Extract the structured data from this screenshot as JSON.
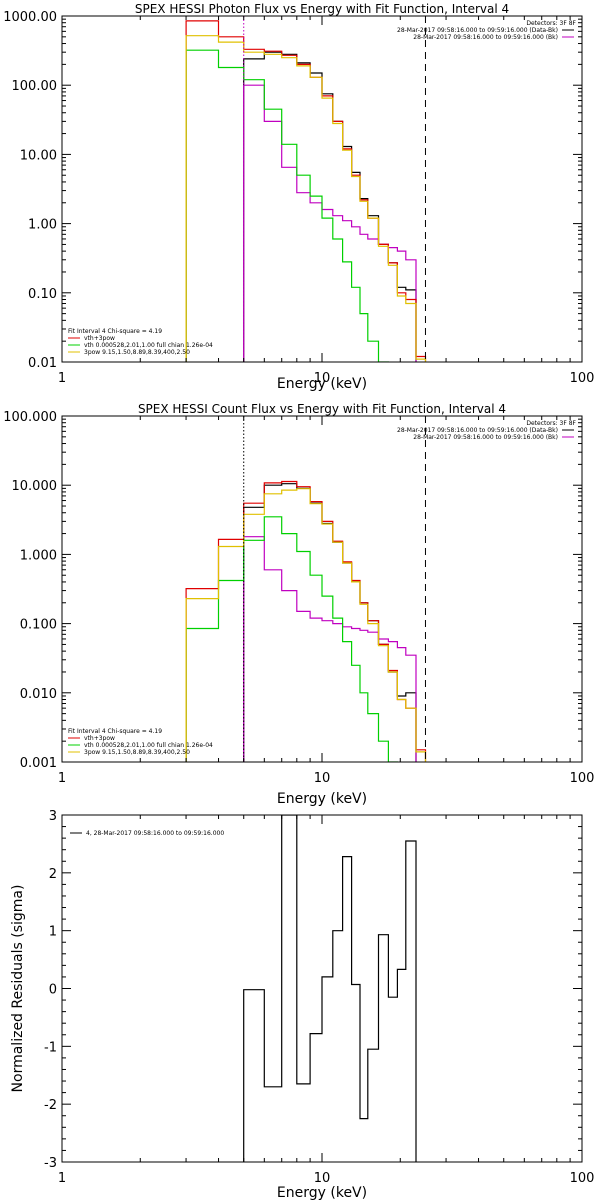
{
  "chart_data": [
    {
      "type": "line",
      "title": "SPEX HESSI Photon Flux vs Energy with Fit Function, Interval 4",
      "xlabel": "Energy (keV)",
      "ylabel": "",
      "xscale": "log",
      "yscale": "log",
      "xlim": [
        1,
        100
      ],
      "ylim": [
        0.01,
        1000
      ],
      "xtick_labels": [
        "1",
        "10",
        "100"
      ],
      "ytick_values": [
        0.01,
        0.1,
        1,
        10,
        100,
        1000
      ],
      "ytick_labels": [
        "0.01",
        "0.10",
        "1.00",
        "10.00",
        "100.00",
        "1000.00"
      ],
      "vlines": [
        {
          "x": 5.0,
          "style": "dotted",
          "color": "#c000c0"
        },
        {
          "x": 25.0,
          "style": "dashed",
          "color": "#000000"
        }
      ],
      "legend_top": [
        {
          "text": "Detectors: 3F 8F",
          "color": null
        },
        {
          "text": "28-Mar-2017 09:58:16.000 to 09:59:16.000 (Data-Bk)",
          "color": "#000000"
        },
        {
          "text": "28-Mar-2017 09:58:16.000 to 09:59:16.000 (Bk)",
          "color": "#c000c0"
        }
      ],
      "legend_bottom": [
        {
          "text": "Fit Interval 4   Chi-square = 4.19",
          "color": null
        },
        {
          "text": "vth+3pow",
          "color": "#e00000"
        },
        {
          "text": "vth 0.000528,2.01,1.00  full chian 1.26e-04",
          "color": "#00d000"
        },
        {
          "text": "3pow 9.15,1.50,8.89,8.39,400,2.50",
          "color": "#e0c000"
        }
      ],
      "edges": [
        3.0,
        4.0,
        5.0,
        6.0,
        7.0,
        8.0,
        9.0,
        10.0,
        11.0,
        12.0,
        13.0,
        14.0,
        15.0,
        16.5,
        18.0,
        19.5,
        21.0,
        23.0,
        25.0,
        27.0
      ],
      "series": [
        {
          "color": "#000000",
          "values": [
            null,
            null,
            240,
            300,
            280,
            210,
            150,
            75,
            30,
            13,
            5.5,
            2.3,
            1.3,
            0.5,
            0.27,
            0.12,
            0.11,
            null,
            null
          ]
        },
        {
          "color": "#c000c0",
          "values": [
            null,
            null,
            100,
            30,
            6.5,
            2.8,
            2.0,
            1.6,
            1.3,
            1.1,
            0.9,
            0.7,
            0.6,
            0.5,
            0.45,
            0.4,
            0.3,
            null,
            null
          ]
        },
        {
          "color": "#e00000",
          "values": [
            850,
            500,
            330,
            310,
            270,
            200,
            130,
            70,
            30,
            12,
            5.0,
            2.2,
            1.2,
            0.5,
            0.27,
            0.1,
            0.08,
            0.012,
            null
          ]
        },
        {
          "color": "#00d000",
          "values": [
            320,
            180,
            120,
            45,
            14,
            5.0,
            2.5,
            1.2,
            0.6,
            0.28,
            0.12,
            0.05,
            0.02,
            0.01,
            null,
            null,
            null,
            null,
            null
          ]
        },
        {
          "color": "#e0c000",
          "values": [
            520,
            420,
            300,
            280,
            250,
            190,
            130,
            65,
            28,
            11.5,
            4.8,
            2.1,
            1.2,
            0.47,
            0.25,
            0.09,
            0.07,
            0.011,
            null
          ]
        }
      ]
    },
    {
      "type": "line",
      "title": "SPEX HESSI Count Flux vs Energy with Fit Function, Interval 4",
      "xlabel": "Energy (keV)",
      "ylabel": "",
      "xscale": "log",
      "yscale": "log",
      "xlim": [
        1,
        100
      ],
      "ylim": [
        0.001,
        100
      ],
      "xtick_labels": [
        "1",
        "10",
        "100"
      ],
      "ytick_values": [
        0.001,
        0.01,
        0.1,
        1,
        10,
        100
      ],
      "ytick_labels": [
        "0.001",
        "0.010",
        "0.100",
        "1.000",
        "10.000",
        "100.000"
      ],
      "vlines": [
        {
          "x": 5.0,
          "style": "dotted",
          "color": "#000000"
        },
        {
          "x": 25.0,
          "style": "dashed",
          "color": "#000000"
        }
      ],
      "legend_top": [
        {
          "text": "Detectors: 3F 8F",
          "color": null
        },
        {
          "text": "28-Mar-2017 09:58:16.000 to 09:59:16.000 (Data-Bk)",
          "color": "#000000"
        },
        {
          "text": "28-Mar-2017 09:58:16.000 to 09:59:16.000 (Bk)",
          "color": "#c000c0"
        }
      ],
      "legend_bottom": [
        {
          "text": "Fit Interval 4   Chi-square = 4.19",
          "color": null
        },
        {
          "text": "vth+3pow",
          "color": "#e00000"
        },
        {
          "text": "vth 0.000528,2.01,1.00  full chian 1.26e-04",
          "color": "#00d000"
        },
        {
          "text": "3pow 9.15,1.50,8.89,8.39,400,2.50",
          "color": "#e0c000"
        }
      ],
      "edges": [
        3.0,
        4.0,
        5.0,
        6.0,
        7.0,
        8.0,
        9.0,
        10.0,
        11.0,
        12.0,
        13.0,
        14.0,
        15.0,
        16.5,
        18.0,
        19.5,
        21.0,
        23.0,
        25.0,
        27.0
      ],
      "series": [
        {
          "color": "#000000",
          "values": [
            null,
            null,
            4.8,
            10.0,
            10.5,
            9.0,
            5.5,
            2.8,
            1.5,
            0.75,
            0.4,
            0.2,
            0.11,
            0.05,
            0.02,
            0.009,
            0.01,
            null,
            null
          ]
        },
        {
          "color": "#c000c0",
          "values": [
            null,
            null,
            1.8,
            0.6,
            0.3,
            0.15,
            0.12,
            0.11,
            0.1,
            0.09,
            0.085,
            0.08,
            0.075,
            0.06,
            0.055,
            0.045,
            0.035,
            null,
            null
          ]
        },
        {
          "color": "#e00000",
          "values": [
            0.32,
            1.65,
            5.5,
            10.8,
            11.3,
            9.5,
            5.8,
            3.0,
            1.55,
            0.78,
            0.42,
            0.2,
            0.11,
            0.05,
            0.021,
            0.008,
            0.006,
            0.0015,
            null
          ]
        },
        {
          "color": "#00d000",
          "values": [
            0.085,
            0.42,
            1.6,
            3.5,
            2.0,
            1.1,
            0.5,
            0.25,
            0.12,
            0.055,
            0.025,
            0.01,
            0.005,
            0.002,
            0.001,
            null,
            null,
            null,
            null
          ]
        },
        {
          "color": "#e0c000",
          "values": [
            0.23,
            1.3,
            3.8,
            7.5,
            8.5,
            8.9,
            5.4,
            2.75,
            1.5,
            0.75,
            0.4,
            0.19,
            0.1,
            0.048,
            0.02,
            0.008,
            0.006,
            0.0014,
            null
          ]
        }
      ]
    },
    {
      "type": "line",
      "title": "",
      "xlabel": "Energy (keV)",
      "ylabel": "Normalized Residuals (sigma)",
      "xscale": "log",
      "yscale": "linear",
      "xlim": [
        1,
        100
      ],
      "ylim": [
        -3,
        3
      ],
      "xtick_labels": [
        "1",
        "10",
        "100"
      ],
      "ytick_values": [
        -3,
        -2,
        -1,
        0,
        1,
        2,
        3
      ],
      "ytick_labels": [
        "-3",
        "-2",
        "-1",
        "0",
        "1",
        "2",
        "3"
      ],
      "vlines": [],
      "legend_top": [
        {
          "text": "4, 28-Mar-2017 09:58:16.000 to 09:59:16.000",
          "color": "#000000"
        }
      ],
      "legend_bottom": [],
      "edges": [
        5.0,
        6.0,
        7.0,
        8.0,
        9.0,
        10.0,
        11.0,
        12.0,
        13.0,
        14.0,
        15.0,
        16.5,
        18.0,
        19.5,
        21.0,
        23.0,
        25.0
      ],
      "series": [
        {
          "color": "#000000",
          "values": [
            -0.02,
            -1.7,
            3.0,
            -1.65,
            -0.78,
            0.2,
            1.0,
            2.28,
            0.07,
            -2.25,
            -1.05,
            0.93,
            -0.15,
            0.33,
            2.55,
            null
          ]
        }
      ]
    }
  ]
}
